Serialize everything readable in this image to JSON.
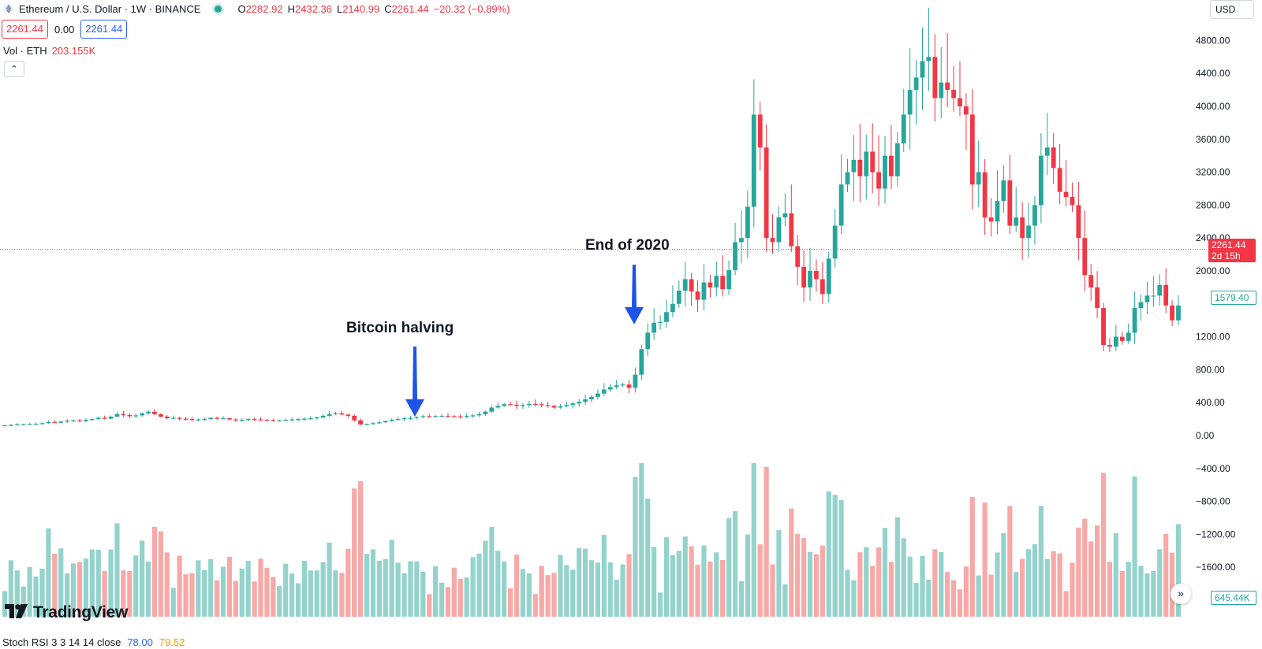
{
  "header": {
    "symbol": "Ethereum / U.S. Dollar · 1W · BINANCE",
    "o_label": "O",
    "o": "2282.92",
    "h_label": "H",
    "h": "2432.36",
    "l_label": "L",
    "l": "2140.99",
    "c_label": "C",
    "c": "2261.44",
    "change": "−20.32 (−0.89%)"
  },
  "price_row": {
    "sell": "2261.44",
    "spread": "0.00",
    "buy": "2261.44"
  },
  "volume_legend": {
    "label": "Vol · ETH",
    "value": "203.155K"
  },
  "collapse_glyph": "⌃",
  "currency": "USD",
  "last_price_label": {
    "price": "2261.44",
    "countdown": "2d 15h"
  },
  "green_price_label": "1579.40",
  "volume_axis_label": "645.44K",
  "scroll_glyph": "»",
  "logo_text": "TradingView",
  "stoch_rsi": {
    "label": "Stoch RSI 3 3 14 14 close",
    "k": "78.00",
    "d": "79.52"
  },
  "annotations": [
    {
      "text": "Bitcoin halving",
      "arrow_price": 230
    },
    {
      "text": "End of 2020",
      "arrow_price": 1350
    }
  ],
  "colors": {
    "up": "#26a69a",
    "down": "#f23645",
    "vol_up": "#94d3cc",
    "vol_down": "#f7a9a7",
    "arrow": "#1e55e6"
  },
  "chart_data": {
    "type": "candlestick",
    "title": "Ethereum / U.S. Dollar · 1W · BINANCE",
    "ylim": [
      -1800,
      4950
    ],
    "y_ticks": [
      4800,
      4400,
      4000,
      3600,
      3200,
      2800,
      2400,
      2000,
      1600,
      1200,
      800,
      400,
      0,
      -400,
      -800,
      -1200,
      -1600
    ],
    "y_tick_labels": [
      "4800.00",
      "4400.00",
      "4000.00",
      "3600.00",
      "3200.00",
      "2800.00",
      "2400.00",
      "2000.00",
      "",
      "1200.00",
      "800.00",
      "400.00",
      "0.00",
      "−400.00",
      "−800.00",
      "−1200.00",
      "−1600.00"
    ],
    "last_price": 2261.44,
    "grid": false,
    "close": [
      125,
      130,
      135,
      138,
      140,
      142,
      150,
      165,
      155,
      170,
      180,
      185,
      175,
      190,
      200,
      215,
      205,
      230,
      260,
      250,
      235,
      245,
      270,
      290,
      260,
      230,
      210,
      215,
      205,
      200,
      190,
      195,
      200,
      215,
      205,
      210,
      195,
      188,
      190,
      200,
      195,
      190,
      185,
      180,
      185,
      190,
      195,
      200,
      205,
      210,
      220,
      240,
      260,
      270,
      255,
      240,
      185,
      135,
      140,
      150,
      160,
      175,
      190,
      200,
      210,
      215,
      225,
      235,
      232,
      238,
      240,
      235,
      232,
      230,
      238,
      245,
      260,
      290,
      340,
      360,
      380,
      375,
      360,
      370,
      385,
      380,
      370,
      360,
      340,
      355,
      370,
      390,
      410,
      440,
      470,
      510,
      560,
      590,
      610,
      620,
      580,
      740,
      1050,
      1250,
      1370,
      1380,
      1500,
      1600,
      1760,
      1900,
      1750,
      1650,
      1860,
      1800,
      1940,
      1780,
      2010,
      2350,
      2400,
      2780,
      3900,
      3500,
      2400,
      2350,
      2650,
      2700,
      2300,
      2050,
      1800,
      2000,
      1900,
      1720,
      2150,
      2550,
      3050,
      3200,
      3350,
      3150,
      3450,
      3200,
      3000,
      3400,
      3150,
      3550,
      3900,
      4200,
      4350,
      4550,
      4600,
      4100,
      4290,
      4200,
      4100,
      4000,
      3900,
      3050,
      3200,
      2650,
      2600,
      2850,
      3100,
      2550,
      2650,
      2400,
      2550,
      2800,
      3400,
      3500,
      3250,
      2960,
      2900,
      2800,
      2400,
      1950,
      1800,
      1550,
      1100,
      1080,
      1200,
      1150,
      1250,
      1550,
      1620,
      1700,
      1700,
      1830,
      1580,
      1400,
      1580
    ]
  }
}
